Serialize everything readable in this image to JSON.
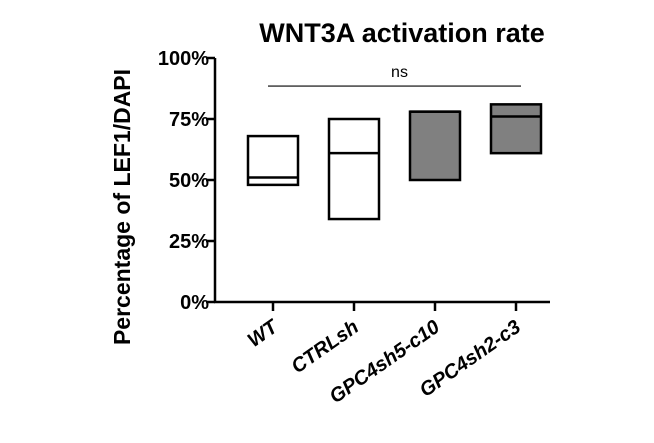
{
  "chart_data": {
    "type": "box",
    "title": "WNT3A activation rate",
    "ylabel": "Percentage of LEF1/DAPI",
    "xlabel": "",
    "ylim": [
      0,
      100
    ],
    "y_ticks": [
      0,
      25,
      50,
      75,
      100
    ],
    "y_tick_labels": [
      "0%",
      "25%",
      "50%",
      "75%",
      "100%"
    ],
    "categories": [
      "WT",
      "CTRLsh",
      "GPC4sh5-c10",
      "GPC4sh2-c3"
    ],
    "series": [
      {
        "category": "WT",
        "min": 48,
        "median": 51,
        "max": 68,
        "color": "#ffffff"
      },
      {
        "category": "CTRLsh",
        "min": 34,
        "median": 61,
        "max": 75,
        "color": "#ffffff"
      },
      {
        "category": "GPC4sh5-c10",
        "min": 50,
        "median": 78,
        "max": 78,
        "color": "#808080"
      },
      {
        "category": "GPC4sh2-c3",
        "min": 61,
        "median": 76,
        "max": 81,
        "color": "#808080"
      }
    ],
    "annotations": [
      {
        "text": "ns",
        "from": "WT",
        "to": "GPC4sh2-c3",
        "y": 88.5
      }
    ],
    "grid": false,
    "legend": "none"
  }
}
